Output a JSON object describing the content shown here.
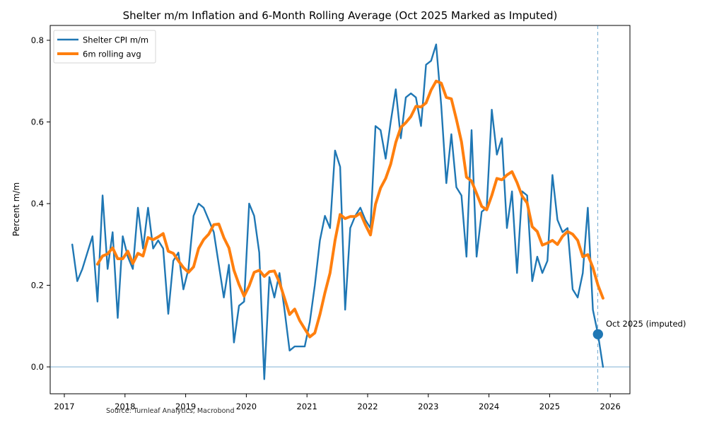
{
  "title": "Shelter m/m Inflation and 6-Month Rolling Average (Oct 2025 Marked as Imputed)",
  "axes": {
    "ylabel": "Percent m/m",
    "x_tick_labels": [
      "2017",
      "2018",
      "2019",
      "2020",
      "2021",
      "2022",
      "2023",
      "2024",
      "2025",
      "2026"
    ],
    "y_tick_labels": [
      "0.0",
      "0.2",
      "0.4",
      "0.6",
      "0.8"
    ],
    "y_tick_values": [
      0.0,
      0.2,
      0.4,
      0.6,
      0.8
    ]
  },
  "legend": {
    "items": [
      {
        "label": "Shelter CPI m/m",
        "color": "#1f77b4"
      },
      {
        "label": "6m rolling avg",
        "color": "#ff7f0e"
      }
    ]
  },
  "annotation": {
    "text": "Oct 2025 (imputed)"
  },
  "source_note": "Source: Turnleaf Analytics, Macrobond",
  "colors": {
    "shelter_line": "#1f77b4",
    "rolling_line": "#ff7f0e",
    "zero_line": "rgba(31,119,180,0.45)",
    "cutoff_line": "rgba(31,119,180,0.55)",
    "marker": "#1f77b4",
    "spine": "#000000"
  },
  "chart_data": {
    "type": "line",
    "title": "Shelter m/m Inflation and 6-Month Rolling Average (Oct 2025 Marked as Imputed)",
    "xlabel": "",
    "ylabel": "Percent m/m",
    "xlim_years": [
      2016.77,
      2026.33
    ],
    "ylim": [
      -0.066,
      0.836
    ],
    "grid": false,
    "legend_position": "upper left",
    "freq": "monthly",
    "start_month": "2017-02",
    "end_month": "2025-11",
    "series": [
      {
        "name": "Shelter CPI m/m",
        "color": "#1f77b4",
        "values": [
          0.3,
          0.21,
          0.24,
          0.28,
          0.32,
          0.16,
          0.42,
          0.24,
          0.33,
          0.12,
          0.32,
          0.27,
          0.24,
          0.39,
          0.29,
          0.39,
          0.29,
          0.31,
          0.29,
          0.13,
          0.26,
          0.28,
          0.19,
          0.24,
          0.37,
          0.4,
          0.39,
          0.36,
          0.33,
          0.25,
          0.17,
          0.25,
          0.06,
          0.15,
          0.16,
          0.4,
          0.37,
          0.28,
          -0.03,
          0.22,
          0.17,
          0.23,
          0.14,
          0.04,
          0.05,
          0.05,
          0.05,
          0.11,
          0.2,
          0.31,
          0.37,
          0.34,
          0.53,
          0.49,
          0.14,
          0.34,
          0.37,
          0.39,
          0.36,
          0.34,
          0.59,
          0.58,
          0.51,
          0.6,
          0.68,
          0.56,
          0.66,
          0.67,
          0.66,
          0.59,
          0.74,
          0.75,
          0.79,
          0.64,
          0.45,
          0.57,
          0.44,
          0.42,
          0.27,
          0.58,
          0.27,
          0.38,
          0.39,
          0.63,
          0.52,
          0.56,
          0.34,
          0.43,
          0.23,
          0.43,
          0.42,
          0.21,
          0.27,
          0.23,
          0.26,
          0.47,
          0.36,
          0.33,
          0.34,
          0.19,
          0.17,
          0.23,
          0.39,
          0.14,
          0.08,
          0.0
        ]
      },
      {
        "name": "6m rolling avg",
        "color": "#ff7f0e",
        "derived": "6-month rolling mean of Shelter CPI m/m",
        "window": 6
      }
    ],
    "imputed_point": {
      "month": "2025-10",
      "value": 0.08,
      "label": "Oct 2025 (imputed)"
    },
    "cutoff_vline_month": "2025-10",
    "zero_hline": true
  }
}
